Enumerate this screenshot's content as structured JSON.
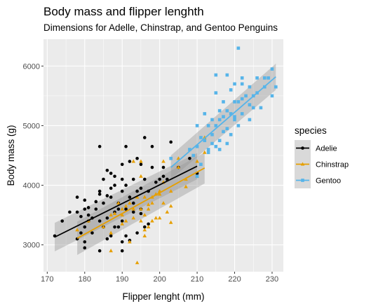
{
  "chart_data": {
    "type": "scatter",
    "title": "Body mass and flipper lenghth",
    "subtitle": "Dimensions for Adelle, Chinstrap, and Gentoo Penguins",
    "xlabel": "Flipper lenght (mm)",
    "ylabel": "Body mass (g)",
    "xlim": [
      169,
      233
    ],
    "ylim": [
      2550,
      6450
    ],
    "xticks": [
      170,
      180,
      190,
      200,
      210,
      220,
      230
    ],
    "yticks": [
      3000,
      4000,
      5000,
      6000
    ],
    "grid": true,
    "legend": {
      "title": "species",
      "position": "right"
    },
    "series": [
      {
        "name": "Adelie",
        "color": "#000000",
        "marker": "circle",
        "trend": {
          "x": [
            172,
            210
          ],
          "y": [
            3130,
            4320
          ],
          "ci": [
            240,
            220
          ]
        },
        "points": [
          [
            172,
            3150
          ],
          [
            174,
            3400
          ],
          [
            176,
            3550
          ],
          [
            178,
            3800
          ],
          [
            178,
            3100
          ],
          [
            178,
            3550
          ],
          [
            180,
            3750
          ],
          [
            180,
            3600
          ],
          [
            180,
            3300
          ],
          [
            180,
            3050
          ],
          [
            181,
            3400
          ],
          [
            181,
            3500
          ],
          [
            182,
            3200
          ],
          [
            182,
            3450
          ],
          [
            183,
            3600
          ],
          [
            184,
            4650
          ],
          [
            184,
            3400
          ],
          [
            184,
            3900
          ],
          [
            185,
            3700
          ],
          [
            185,
            3300
          ],
          [
            186,
            3450
          ],
          [
            186,
            3100
          ],
          [
            187,
            4200
          ],
          [
            187,
            3800
          ],
          [
            187,
            3150
          ],
          [
            188,
            4000
          ],
          [
            188,
            3550
          ],
          [
            189,
            3600
          ],
          [
            189,
            3300
          ],
          [
            190,
            3900
          ],
          [
            190,
            3400
          ],
          [
            190,
            3050
          ],
          [
            190,
            2900
          ],
          [
            191,
            4000
          ],
          [
            191,
            3600
          ],
          [
            191,
            3150
          ],
          [
            192,
            4400
          ],
          [
            192,
            3800
          ],
          [
            193,
            4100
          ],
          [
            193,
            3550
          ],
          [
            194,
            3900
          ],
          [
            195,
            4350
          ],
          [
            195,
            3600
          ],
          [
            196,
            4100
          ],
          [
            196,
            3300
          ],
          [
            196,
            4800
          ],
          [
            197,
            3900
          ],
          [
            198,
            4300
          ],
          [
            199,
            4050
          ],
          [
            200,
            4100
          ],
          [
            201,
            4300
          ],
          [
            202,
            4100
          ],
          [
            203,
            4725
          ],
          [
            205,
            4300
          ],
          [
            208,
            4450
          ],
          [
            210,
            4200
          ],
          [
            186,
            4250
          ],
          [
            179,
            3200
          ],
          [
            184,
            2900
          ],
          [
            189,
            3700
          ],
          [
            194,
            4450
          ],
          [
            188,
            4150
          ],
          [
            191,
            4650
          ],
          [
            185,
            4100
          ],
          [
            179,
            3475
          ],
          [
            183,
            3725
          ],
          [
            193,
            3700
          ],
          [
            186,
            3825
          ],
          [
            190,
            4350
          ],
          [
            195,
            3525
          ],
          [
            192,
            3075
          ],
          [
            197,
            3350
          ],
          [
            180,
            2950
          ],
          [
            184,
            3850
          ],
          [
            190,
            4100
          ],
          [
            181,
            3625
          ],
          [
            187,
            3950
          ],
          [
            194,
            3200
          ],
          [
            201,
            4150
          ],
          [
            198,
            4650
          ],
          [
            195,
            3950
          ],
          [
            188,
            3300
          ]
        ]
      },
      {
        "name": "Chinstrap",
        "color": "#e69f00",
        "marker": "triangle",
        "trend": {
          "x": [
            178,
            212
          ],
          "y": [
            3110,
            4290
          ],
          "ci": [
            280,
            260
          ]
        },
        "points": [
          [
            178,
            3250
          ],
          [
            181,
            3400
          ],
          [
            185,
            3300
          ],
          [
            187,
            2900
          ],
          [
            187,
            3500
          ],
          [
            189,
            3700
          ],
          [
            190,
            3350
          ],
          [
            190,
            3500
          ],
          [
            191,
            3400
          ],
          [
            191,
            3650
          ],
          [
            192,
            3700
          ],
          [
            193,
            3450
          ],
          [
            193,
            3600
          ],
          [
            194,
            3800
          ],
          [
            195,
            3400
          ],
          [
            195,
            3600
          ],
          [
            195,
            4400
          ],
          [
            196,
            3500
          ],
          [
            196,
            3800
          ],
          [
            196,
            3150
          ],
          [
            197,
            3300
          ],
          [
            197,
            3600
          ],
          [
            198,
            3700
          ],
          [
            198,
            3800
          ],
          [
            199,
            3850
          ],
          [
            200,
            3900
          ],
          [
            200,
            3450
          ],
          [
            201,
            4050
          ],
          [
            201,
            3700
          ],
          [
            203,
            3650
          ],
          [
            205,
            4300
          ],
          [
            207,
            3975
          ],
          [
            210,
            4150
          ],
          [
            212,
            4800
          ],
          [
            187,
            3200
          ],
          [
            192,
            3050
          ],
          [
            201,
            4400
          ],
          [
            198,
            3400
          ],
          [
            203,
            3900
          ],
          [
            207,
            4100
          ],
          [
            199,
            3450
          ],
          [
            194,
            2700
          ],
          [
            195,
            4150
          ],
          [
            205,
            4450
          ],
          [
            190,
            3600
          ],
          [
            193,
            4400
          ],
          [
            197,
            3675
          ],
          [
            202,
            3550
          ],
          [
            210,
            4400
          ],
          [
            212,
            4550
          ],
          [
            188,
            3525
          ],
          [
            196,
            3250
          ],
          [
            200,
            3850
          ],
          [
            203,
            3375
          ]
        ]
      },
      {
        "name": "Gentoo",
        "color": "#56b4e9",
        "marker": "square",
        "trend": {
          "x": [
            203,
            231
          ],
          "y": [
            4300,
            5820
          ],
          "ci": [
            200,
            220
          ]
        },
        "points": [
          [
            203,
            4450
          ],
          [
            208,
            4600
          ],
          [
            209,
            4500
          ],
          [
            210,
            4150
          ],
          [
            210,
            4650
          ],
          [
            211,
            4800
          ],
          [
            212,
            4750
          ],
          [
            213,
            4550
          ],
          [
            213,
            5000
          ],
          [
            214,
            4700
          ],
          [
            214,
            4850
          ],
          [
            215,
            4650
          ],
          [
            215,
            5000
          ],
          [
            215,
            5550
          ],
          [
            216,
            4750
          ],
          [
            216,
            5100
          ],
          [
            217,
            4900
          ],
          [
            217,
            5400
          ],
          [
            218,
            4950
          ],
          [
            218,
            5250
          ],
          [
            219,
            5200
          ],
          [
            219,
            5600
          ],
          [
            220,
            5150
          ],
          [
            220,
            5400
          ],
          [
            221,
            5000
          ],
          [
            221,
            5400
          ],
          [
            222,
            5450
          ],
          [
            222,
            5700
          ],
          [
            223,
            5500
          ],
          [
            224,
            5350
          ],
          [
            224,
            5650
          ],
          [
            225,
            5300
          ],
          [
            225,
            5500
          ],
          [
            226,
            5550
          ],
          [
            228,
            5650
          ],
          [
            228,
            5800
          ],
          [
            230,
            5950
          ],
          [
            230,
            5500
          ],
          [
            231,
            5650
          ],
          [
            215,
            5850
          ],
          [
            221,
            6300
          ],
          [
            218,
            5850
          ],
          [
            220,
            5700
          ],
          [
            216,
            5250
          ],
          [
            222,
            5800
          ],
          [
            212,
            5200
          ],
          [
            214,
            5100
          ],
          [
            210,
            5000
          ],
          [
            226,
            5800
          ],
          [
            229,
            5800
          ],
          [
            217,
            5150
          ],
          [
            219,
            4850
          ],
          [
            213,
            4600
          ],
          [
            211,
            4350
          ],
          [
            222,
            5200
          ],
          [
            224,
            5100
          ],
          [
            227,
            5300
          ],
          [
            216,
            4600
          ],
          [
            220,
            5100
          ],
          [
            218,
            4700
          ]
        ]
      }
    ]
  }
}
